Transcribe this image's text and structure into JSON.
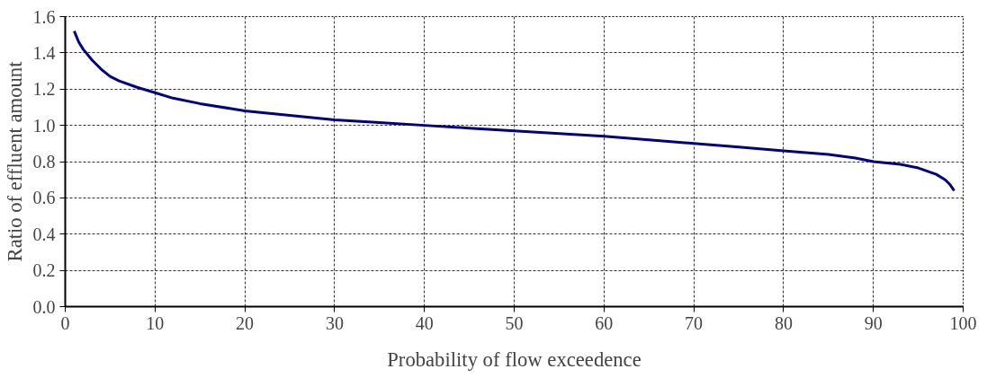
{
  "chart_data": {
    "type": "line",
    "xlabel": "Probability of flow exceedence",
    "ylabel": "Ratio of effluent amount",
    "x": [
      1,
      1.5,
      2,
      3,
      4,
      5,
      6,
      8,
      10,
      12,
      15,
      20,
      25,
      30,
      35,
      40,
      45,
      50,
      55,
      60,
      65,
      70,
      75,
      80,
      85,
      88,
      90,
      93,
      95,
      97,
      98,
      98.5,
      99
    ],
    "series": [
      {
        "color": "#000080",
        "values": [
          1.52,
          1.46,
          1.42,
          1.36,
          1.31,
          1.27,
          1.245,
          1.21,
          1.18,
          1.15,
          1.12,
          1.08,
          1.055,
          1.03,
          1.015,
          1.0,
          0.985,
          0.97,
          0.955,
          0.94,
          0.92,
          0.9,
          0.88,
          0.86,
          0.84,
          0.82,
          0.8,
          0.785,
          0.765,
          0.73,
          0.7,
          0.675,
          0.64
        ]
      }
    ],
    "xlim": [
      0,
      100
    ],
    "xticks": [
      0,
      10,
      20,
      30,
      40,
      50,
      60,
      70,
      80,
      90,
      100
    ],
    "ylim": [
      0,
      1.6
    ],
    "yticks": [
      {
        "value": 0,
        "label": "0.0"
      },
      0.2,
      0.4,
      0.6,
      0.8,
      {
        "value": 1,
        "label": "1.0"
      },
      1.2,
      1.4,
      1.6
    ],
    "grid": true,
    "marker": "none",
    "line_style": "solid"
  }
}
